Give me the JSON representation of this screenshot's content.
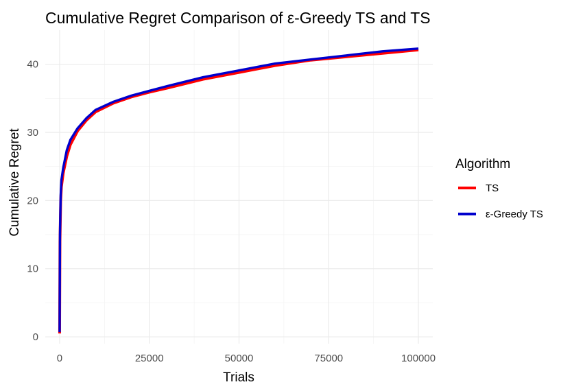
{
  "chart_data": {
    "type": "line",
    "title": "Cumulative Regret Comparison of ε-Greedy TS and TS",
    "xlabel": "Trials",
    "ylabel": "Cumulative Regret",
    "xlim": [
      -4000,
      104000
    ],
    "ylim": [
      -1,
      45
    ],
    "x_ticks": [
      0,
      25000,
      50000,
      75000,
      100000
    ],
    "x_tick_labels": [
      "0",
      "25000",
      "50000",
      "75000",
      "100000"
    ],
    "y_ticks": [
      0,
      10,
      20,
      30,
      40
    ],
    "y_tick_labels": [
      "0",
      "10",
      "20",
      "30",
      "40"
    ],
    "grid": true,
    "legend": {
      "title": "Algorithm",
      "placement": "right",
      "entries": [
        {
          "label": "TS",
          "color": "#ff0000"
        },
        {
          "label": "ε-Greedy TS",
          "color": "#0000cd"
        }
      ]
    },
    "series": [
      {
        "name": "TS",
        "color": "#ff0000",
        "x": [
          1,
          100,
          300,
          500,
          1000,
          2000,
          3000,
          5000,
          7500,
          10000,
          15000,
          20000,
          25000,
          30000,
          40000,
          50000,
          60000,
          70000,
          80000,
          90000,
          100000
        ],
        "y": [
          0.5,
          14,
          20,
          22,
          24,
          26.5,
          28.2,
          30.2,
          31.8,
          33,
          34.3,
          35.2,
          35.9,
          36.5,
          37.8,
          38.8,
          39.8,
          40.6,
          41.1,
          41.6,
          42.1
        ]
      },
      {
        "name": "ε-Greedy TS",
        "color": "#0000cd",
        "x": [
          1,
          100,
          300,
          500,
          1000,
          2000,
          3000,
          5000,
          7500,
          10000,
          15000,
          20000,
          25000,
          30000,
          40000,
          50000,
          60000,
          70000,
          80000,
          90000,
          100000
        ],
        "y": [
          0.7,
          15,
          20.8,
          23,
          24.8,
          27.4,
          28.9,
          30.6,
          32.1,
          33.3,
          34.5,
          35.4,
          36.1,
          36.8,
          38.1,
          39.1,
          40.1,
          40.7,
          41.3,
          41.9,
          42.3
        ]
      }
    ]
  }
}
